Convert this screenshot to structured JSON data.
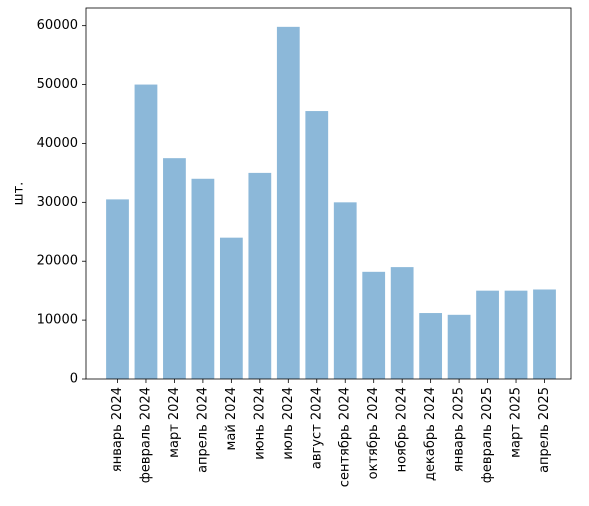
{
  "chart_data": {
    "type": "bar",
    "ylabel": "шт.",
    "xlabel": "",
    "title": "",
    "ylim": [
      0,
      63000
    ],
    "yticks": [
      0,
      10000,
      20000,
      30000,
      40000,
      50000,
      60000
    ],
    "grid": false,
    "bar_color": "#8cb8d9",
    "categories": [
      "январь 2024",
      "февраль 2024",
      "март 2024",
      "апрель 2024",
      "май 2024",
      "июнь 2024",
      "июль 2024",
      "август 2024",
      "сентябрь 2024",
      "октябрь 2024",
      "ноябрь 2024",
      "декабрь 2024",
      "январь 2025",
      "февраль 2025",
      "март 2025",
      "апрель 2025"
    ],
    "values": [
      30500,
      50000,
      37500,
      34000,
      24000,
      35000,
      59800,
      45500,
      30000,
      18200,
      19000,
      11200,
      10900,
      15000,
      15000,
      15200
    ]
  }
}
